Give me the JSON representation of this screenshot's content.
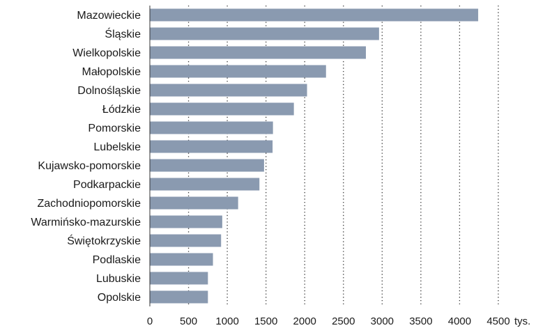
{
  "chart_data": {
    "type": "bar",
    "orientation": "horizontal",
    "categories": [
      "Mazowieckie",
      "Śląskie",
      "Wielkopolskie",
      "Małopolskie",
      "Dolnośląskie",
      "Łódzkie",
      "Pomorskie",
      "Lubelskie",
      "Kujawsko-pomorskie",
      "Podkarpackie",
      "Zachodniopomorskie",
      "Warmińsko-mazurskie",
      "Świętokrzyskie",
      "Podlaskie",
      "Lubuskie",
      "Opolskie"
    ],
    "values": [
      4240,
      2960,
      2790,
      2275,
      2030,
      1860,
      1590,
      1585,
      1475,
      1415,
      1140,
      935,
      920,
      815,
      750,
      750
    ],
    "xlim": [
      0,
      4500
    ],
    "x_ticks": [
      "0",
      "500",
      "1000",
      "1500",
      "2000",
      "2500",
      "3000",
      "3500",
      "4000",
      "4500"
    ],
    "x_unit": "tys.",
    "grid": "vertical dotted",
    "bar_color": "#8a9ab0",
    "title": "",
    "xlabel": "",
    "ylabel": ""
  }
}
